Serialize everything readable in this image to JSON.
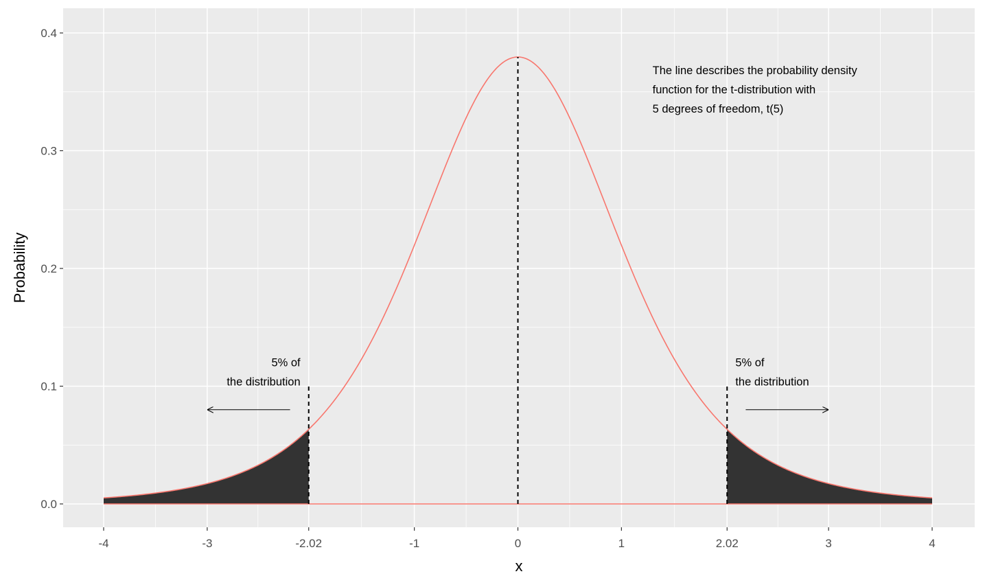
{
  "chart_data": {
    "type": "area",
    "xlabel": "x",
    "ylabel": "Probability",
    "xlim": [
      -4,
      4
    ],
    "ylim": [
      0,
      0.4
    ],
    "x_ticks": [
      {
        "value": -4,
        "label": "-4"
      },
      {
        "value": -3,
        "label": "-3"
      },
      {
        "value": -2.02,
        "label": "-2.02"
      },
      {
        "value": -1,
        "label": "-1"
      },
      {
        "value": 0,
        "label": "0"
      },
      {
        "value": 1,
        "label": "1"
      },
      {
        "value": 2.02,
        "label": "2.02"
      },
      {
        "value": 3,
        "label": "3"
      },
      {
        "value": 4,
        "label": "4"
      }
    ],
    "y_ticks": [
      {
        "value": 0.0,
        "label": "0.0"
      },
      {
        "value": 0.1,
        "label": "0.1"
      },
      {
        "value": 0.2,
        "label": "0.2"
      },
      {
        "value": 0.3,
        "label": "0.3"
      },
      {
        "value": 0.4,
        "label": "0.4"
      }
    ],
    "grid": true,
    "degrees_of_freedom": 5,
    "series": [
      {
        "x": [
          -4,
          -3.5,
          -3,
          -2.5,
          -2.02,
          -1.5,
          -1,
          -0.5,
          0,
          0.5,
          1,
          1.5,
          2.02,
          2.5,
          3,
          3.5,
          4
        ],
        "y": [
          0.0051,
          0.0088,
          0.0173,
          0.0329,
          0.0636,
          0.1244,
          0.2197,
          0.3279,
          0.3796,
          0.3279,
          0.2197,
          0.1244,
          0.0636,
          0.0329,
          0.0173,
          0.0088,
          0.0051
        ],
        "color": "#F8766D"
      }
    ],
    "shaded_regions": [
      {
        "from": -4,
        "to": -2.02,
        "color": "#333333"
      },
      {
        "from": 2.02,
        "to": 4,
        "color": "#333333"
      }
    ],
    "vlines": [
      {
        "x": -2.02,
        "y_from": 0,
        "y_to": 0.1
      },
      {
        "x": 0,
        "y_from": 0,
        "y_to": 0.3796
      },
      {
        "x": 2.02,
        "y_from": 0,
        "y_to": 0.1
      }
    ],
    "arrows": [
      {
        "from": -2.2,
        "to": -3,
        "y": 0.08
      },
      {
        "from": 2.2,
        "to": 3,
        "y": 0.08
      }
    ],
    "annotations": [
      {
        "x": 1.3,
        "y": 0.365,
        "align": "left",
        "lines": [
          "The line describes the probability density",
          "function for the t-distribution with",
          "5 degrees of freedom, t(5)"
        ]
      },
      {
        "x": -2.1,
        "y": 0.117,
        "align": "right",
        "lines": [
          "5% of",
          "the distribution"
        ]
      },
      {
        "x": 2.1,
        "y": 0.117,
        "align": "left",
        "lines": [
          "5% of",
          "the distribution"
        ]
      }
    ],
    "colors": {
      "panel": "#EBEBEB",
      "grid": "#FFFFFF",
      "curve": "#F8766D",
      "fill": "#333333"
    }
  }
}
